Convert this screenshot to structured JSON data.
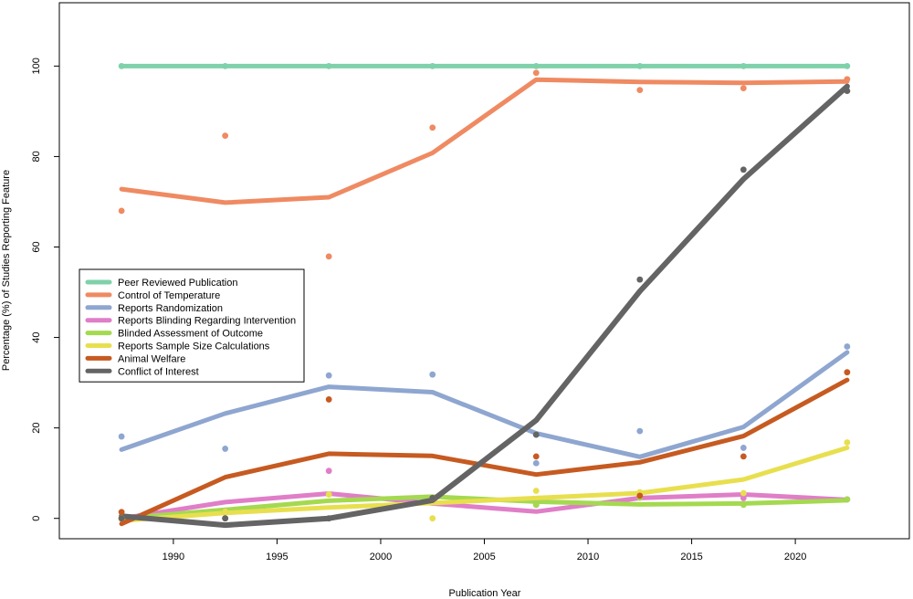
{
  "chart_data": {
    "type": "line",
    "title": "",
    "xlabel": "Publication Year",
    "ylabel": "Percentage (%) of Studies Reporting Feature",
    "xlim": [
      1984.5,
      2025.5
    ],
    "ylim": [
      -4.5,
      114
    ],
    "xticks": [
      1990,
      1995,
      2000,
      2005,
      2010,
      2015,
      2020
    ],
    "yticks": [
      0,
      20,
      40,
      60,
      80,
      100
    ],
    "x": [
      1987.5,
      1992.5,
      1997.5,
      2002.5,
      2007.5,
      2012.5,
      2017.5,
      2022.5
    ],
    "legend_position": "left-middle",
    "series": [
      {
        "name": "Peer Reviewed Publication",
        "color": "#7fd1aa",
        "line_values": [
          100,
          100,
          100,
          100,
          100,
          100,
          100,
          100
        ],
        "point_values": [
          100,
          100,
          100,
          100,
          100,
          100,
          100,
          100
        ]
      },
      {
        "name": "Control of Temperature",
        "color": "#ef8a62",
        "line_values": [
          72.8,
          69.8,
          71.0,
          80.8,
          97.0,
          96.5,
          96.3,
          96.6
        ],
        "point_values": [
          68.0,
          84.6,
          57.9,
          86.4,
          98.5,
          94.7,
          95.1,
          97.1
        ]
      },
      {
        "name": "Reports Randomization",
        "color": "#8ea6d0",
        "line_values": [
          15.2,
          23.2,
          29.1,
          27.9,
          18.8,
          13.6,
          20.2,
          36.7
        ],
        "point_values": [
          18.1,
          15.4,
          31.6,
          31.8,
          12.2,
          19.3,
          15.6,
          38.0
        ]
      },
      {
        "name": "Reports Blinding Regarding Intervention",
        "color": "#e07ec8",
        "line_values": [
          0.0,
          3.6,
          5.5,
          3.3,
          1.5,
          4.5,
          5.3,
          4.1
        ],
        "point_values": [
          0.0,
          1.5,
          10.5,
          4.5,
          3.0,
          4.6,
          4.5,
          4.2
        ]
      },
      {
        "name": "Blinded Assessment of Outcome",
        "color": "#a4d950",
        "line_values": [
          0.0,
          1.9,
          3.9,
          4.8,
          3.7,
          3.1,
          3.3,
          4.0
        ],
        "point_values": [
          0.0,
          1.5,
          5.3,
          4.5,
          3.0,
          4.6,
          3.0,
          4.2
        ]
      },
      {
        "name": "Reports Sample Size Calculations",
        "color": "#e8df4f",
        "line_values": [
          -0.5,
          1.2,
          2.4,
          3.4,
          4.5,
          5.6,
          8.6,
          15.6
        ],
        "point_values": [
          0.0,
          1.5,
          5.3,
          0.0,
          6.1,
          5.8,
          5.6,
          16.8
        ]
      },
      {
        "name": "Animal Welfare",
        "color": "#c65a21",
        "line_values": [
          -1.2,
          9.1,
          14.3,
          13.8,
          9.7,
          12.4,
          18.2,
          30.6
        ],
        "point_values": [
          1.4,
          0.0,
          26.3,
          4.5,
          13.7,
          5.0,
          13.7,
          32.3
        ]
      },
      {
        "name": "Conflict of Interest",
        "color": "#646464",
        "line_values": [
          0.5,
          -1.5,
          0.0,
          4.0,
          21.7,
          50.2,
          75.0,
          95.5
        ],
        "point_values": [
          0.0,
          0.0,
          0.0,
          4.5,
          18.5,
          52.8,
          77.1,
          94.5
        ]
      }
    ]
  }
}
